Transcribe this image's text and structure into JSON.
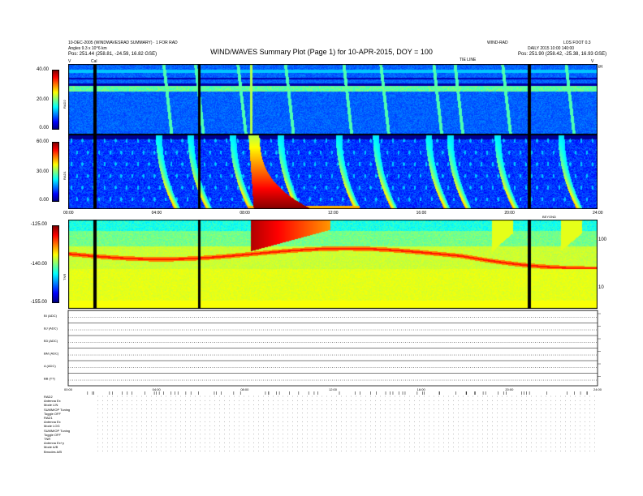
{
  "header": {
    "title": "WIND/WAVES Summary Plot (Page 1) for 10-APR-2015, DOY = 100",
    "left_line1": "10-DEC-2005 (WINDWAVESRAD SUMMARY) · 1 FOR RAD",
    "left_line2": "Angles 9.3 x 10^6 km",
    "left_line3": "Pos: 251.44 (258.81, -24.59, 16.82 GSE)",
    "right_line1": "DAILY 2015 10:00 140:00",
    "right_line2": "Pos: 251.90 (258.42, -25.38, 16.93 GSE)",
    "right_top_a": "WIND-RAD",
    "right_top_b": "LOS FOOT 0.3",
    "tick_caption_left": "V",
    "tick_caption_cal": "Cal",
    "tick_caption_mid": "TIE LINE",
    "tick_caption_right": "V",
    "tick_caption_right2": "tH"
  },
  "chart_data": [
    {
      "type": "heatmap",
      "name": "RAD2",
      "ylabel": "RAD2",
      "ylim": [
        0,
        40
      ],
      "yticks": [
        "40.00",
        "20.00",
        "0.00"
      ]
    },
    {
      "type": "heatmap",
      "name": "RAD1",
      "ylabel": "RAD1",
      "ylim": [
        0,
        60
      ],
      "yticks": [
        "60.00",
        "30.00",
        "0.00"
      ],
      "xticks": [
        "00:00",
        "04:00",
        "08:00",
        "12:00",
        "16:00",
        "20:00",
        "24:00"
      ]
    },
    {
      "type": "heatmap",
      "name": "TNR",
      "ylabel": "TNR",
      "ylim": [
        -155,
        -125
      ],
      "yticks": [
        "-125.00",
        "-140.00",
        "-155.00"
      ],
      "right_ticks": [
        "100",
        "10"
      ],
      "right_top_label": "BEYOND"
    },
    {
      "type": "line",
      "name": "housekeeping",
      "rows": [
        "BI (ADC)",
        "BJ (ADC)",
        "B3 (ADC)",
        "BM (ADC)",
        "A (ADC)",
        "BB (TT)"
      ],
      "xticks": [
        "00:00",
        "04:00",
        "08:00",
        "12:00",
        "16:00",
        "20:00",
        "24:00"
      ]
    }
  ],
  "footer": {
    "lines": [
      "RAD2",
      "Antenna Ex",
      "Mode LIN",
      "SUMM/OP Tuning",
      "Toggle OFF",
      "RAD1",
      "Antenna Ex",
      "Mode LOG",
      "SUMM/OP Tuning",
      "Toggle OFF",
      "TNR",
      "Antenna Ex+y",
      "Mode A/B",
      "Bmodes A/B"
    ]
  }
}
